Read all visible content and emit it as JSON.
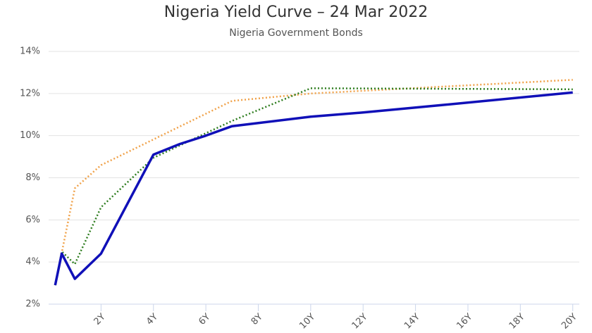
{
  "chart_data": {
    "type": "line",
    "title": "Nigeria Yield Curve – 24 Mar 2022",
    "subtitle": "Nigeria Government Bonds",
    "series": [
      {
        "color": "#f0a24a",
        "dash": true,
        "x": [
          0.25,
          1,
          2,
          7,
          10,
          20
        ],
        "values": [
          2.9,
          7.5,
          8.6,
          11.65,
          12.0,
          12.65
        ]
      },
      {
        "color": "#2e7d1f",
        "dash": true,
        "x": [
          0.25,
          0.5,
          1,
          2,
          4,
          7,
          10,
          20
        ],
        "values": [
          2.9,
          4.5,
          3.9,
          6.6,
          8.95,
          10.7,
          12.25,
          12.2
        ]
      },
      {
        "color": "#1010b8",
        "dash": false,
        "x": [
          0.25,
          0.5,
          1,
          2,
          4,
          5,
          6,
          7,
          8,
          10,
          12,
          15,
          20
        ],
        "values": [
          2.9,
          4.4,
          3.2,
          4.4,
          9.1,
          9.6,
          10.0,
          10.45,
          10.6,
          10.9,
          11.1,
          11.45,
          12.05
        ]
      }
    ],
    "xlim": [
      0,
      20.25
    ],
    "xticks": [
      {
        "value": 2,
        "label": "2Y"
      },
      {
        "value": 4,
        "label": "4Y"
      },
      {
        "value": 6,
        "label": "6Y"
      },
      {
        "value": 8,
        "label": "8Y"
      },
      {
        "value": 10,
        "label": "10Y"
      },
      {
        "value": 12,
        "label": "12Y"
      },
      {
        "value": 14,
        "label": "14Y"
      },
      {
        "value": 16,
        "label": "16Y"
      },
      {
        "value": 18,
        "label": "18Y"
      },
      {
        "value": 20,
        "label": "20Y"
      }
    ],
    "ylim": [
      2,
      14
    ],
    "yticks": [
      {
        "value": 2,
        "label": "2%"
      },
      {
        "value": 4,
        "label": "4%"
      },
      {
        "value": 6,
        "label": "6%"
      },
      {
        "value": 8,
        "label": "8%"
      },
      {
        "value": 10,
        "label": "10%"
      },
      {
        "value": 12,
        "label": "12%"
      },
      {
        "value": 14,
        "label": "14%"
      }
    ],
    "grid": true
  }
}
